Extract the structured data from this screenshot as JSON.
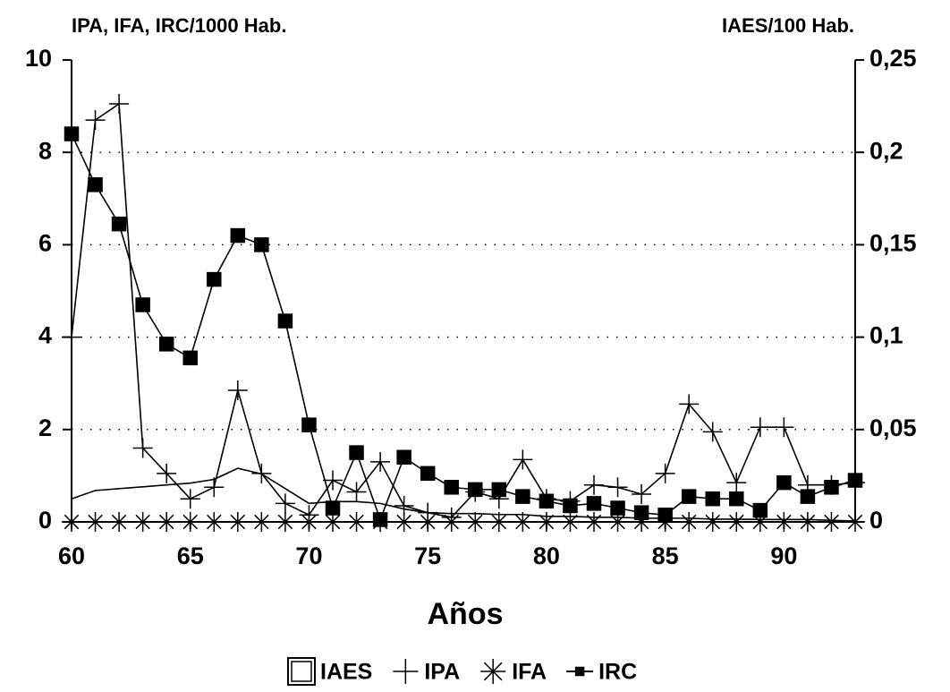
{
  "chart_data": {
    "type": "line",
    "y_axis_label": "IPA, IFA, IRC/1000 Hab.",
    "y2_axis_label": "IAES/100 Hab.",
    "x_axis_label": "Años",
    "x": [
      60,
      61,
      62,
      63,
      64,
      65,
      66,
      67,
      68,
      69,
      70,
      71,
      72,
      73,
      74,
      75,
      76,
      77,
      78,
      79,
      80,
      81,
      82,
      83,
      84,
      85,
      86,
      87,
      88,
      89,
      90,
      91,
      92,
      93
    ],
    "xlim": [
      60,
      93
    ],
    "xticks": [
      60,
      65,
      70,
      75,
      80,
      85,
      90
    ],
    "ylim": [
      0,
      10
    ],
    "yticks": [
      0,
      2,
      4,
      6,
      8,
      10
    ],
    "y2lim": [
      0,
      0.25
    ],
    "y2ticks": [
      0,
      {
        "value": 0.05,
        "label": "0,05"
      },
      {
        "value": 0.1,
        "label": "0,1"
      },
      {
        "value": 0.15,
        "label": "0,15"
      },
      {
        "value": 0.2,
        "label": "0,2"
      },
      {
        "value": 0.25,
        "label": "0,25"
      }
    ],
    "grid": true,
    "legend": "bottom",
    "series": [
      {
        "name": "IAES",
        "color": "#000000",
        "marker": "none",
        "axis": "y2",
        "values": [
          0.0125,
          0.017,
          0.018,
          0.019,
          0.02,
          0.021,
          0.023,
          0.029,
          0.026,
          0.018,
          0.01,
          0.011,
          0.011,
          0.01,
          0.007,
          0.005,
          0.0045,
          0.0045,
          0.004,
          0.004,
          0.003,
          0.003,
          0.0025,
          0.0025,
          0.002,
          0.002,
          0.002,
          0.0015,
          0.0015,
          0.0013,
          0.0013,
          0.0013,
          0.0008,
          0.0005
        ]
      },
      {
        "name": "IPA",
        "color": "#000000",
        "marker": "plus",
        "values": [
          4.0,
          8.7,
          9.05,
          1.6,
          1.05,
          0.5,
          0.75,
          2.85,
          1.05,
          0.4,
          0.15,
          0.9,
          0.65,
          1.3,
          0.35,
          0.2,
          0.1,
          0.65,
          0.5,
          1.35,
          0.5,
          0.45,
          0.8,
          0.75,
          0.6,
          1.05,
          2.55,
          1.95,
          0.85,
          2.05,
          2.05,
          0.8,
          0.8,
          0.85
        ]
      },
      {
        "name": "IFA",
        "color": "#000000",
        "marker": "asterisk",
        "values": [
          0,
          0,
          0,
          0,
          0,
          0,
          0,
          0,
          0,
          0,
          0,
          0,
          0,
          0,
          0,
          0,
          0,
          0,
          0,
          0,
          0,
          0,
          0,
          0,
          0,
          0,
          0,
          0,
          0,
          0,
          0,
          0,
          0,
          0
        ]
      },
      {
        "name": "IRC",
        "color": "#000000",
        "marker": "square",
        "values": [
          8.4,
          7.3,
          6.45,
          4.7,
          3.85,
          3.55,
          5.25,
          6.2,
          6.0,
          4.35,
          2.1,
          0.3,
          1.5,
          0.05,
          1.4,
          1.05,
          0.75,
          0.7,
          0.7,
          0.55,
          0.45,
          0.35,
          0.4,
          0.3,
          0.2,
          0.15,
          0.55,
          0.5,
          0.5,
          0.25,
          0.85,
          0.55,
          0.75,
          0.9
        ]
      }
    ]
  }
}
